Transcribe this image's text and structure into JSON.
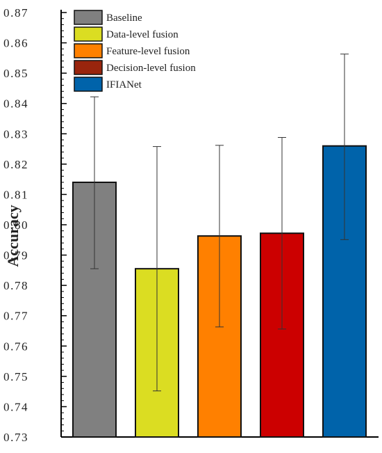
{
  "chart_data": {
    "type": "bar",
    "ylabel": "Accuracy",
    "xlabel": "",
    "title": "",
    "ylim": [
      0.73,
      0.87
    ],
    "yticks": [
      "0.73",
      "0.74",
      "0.75",
      "0.76",
      "0.77",
      "0.78",
      "0.79",
      "0.80",
      "0.81",
      "0.82",
      "0.83",
      "0.84",
      "0.85",
      "0.86",
      "0.87"
    ],
    "grid": false,
    "legend_position": "top-left",
    "series": [
      {
        "name": "Baseline",
        "value": 0.814,
        "error_low": 0.7855,
        "error_high": 0.8422,
        "color": "#808080"
      },
      {
        "name": "Data-level fusion",
        "value": 0.7855,
        "error_low": 0.7452,
        "error_high": 0.8258,
        "color": "#DBDD22"
      },
      {
        "name": "Feature-level fusion",
        "value": 0.7963,
        "error_low": 0.7663,
        "error_high": 0.8262,
        "color": "#FF8000"
      },
      {
        "name": "Decision-level fusion",
        "value": 0.7972,
        "error_low": 0.7656,
        "error_high": 0.8288,
        "color": "#CC0000"
      },
      {
        "name": "IFIANet",
        "value": 0.826,
        "error_low": 0.7951,
        "error_high": 0.8563,
        "color": "#0063AA"
      }
    ],
    "legend_swatch_colors": [
      "#808080",
      "#DBDD22",
      "#FF8000",
      "#99250D",
      "#0063AA"
    ]
  }
}
